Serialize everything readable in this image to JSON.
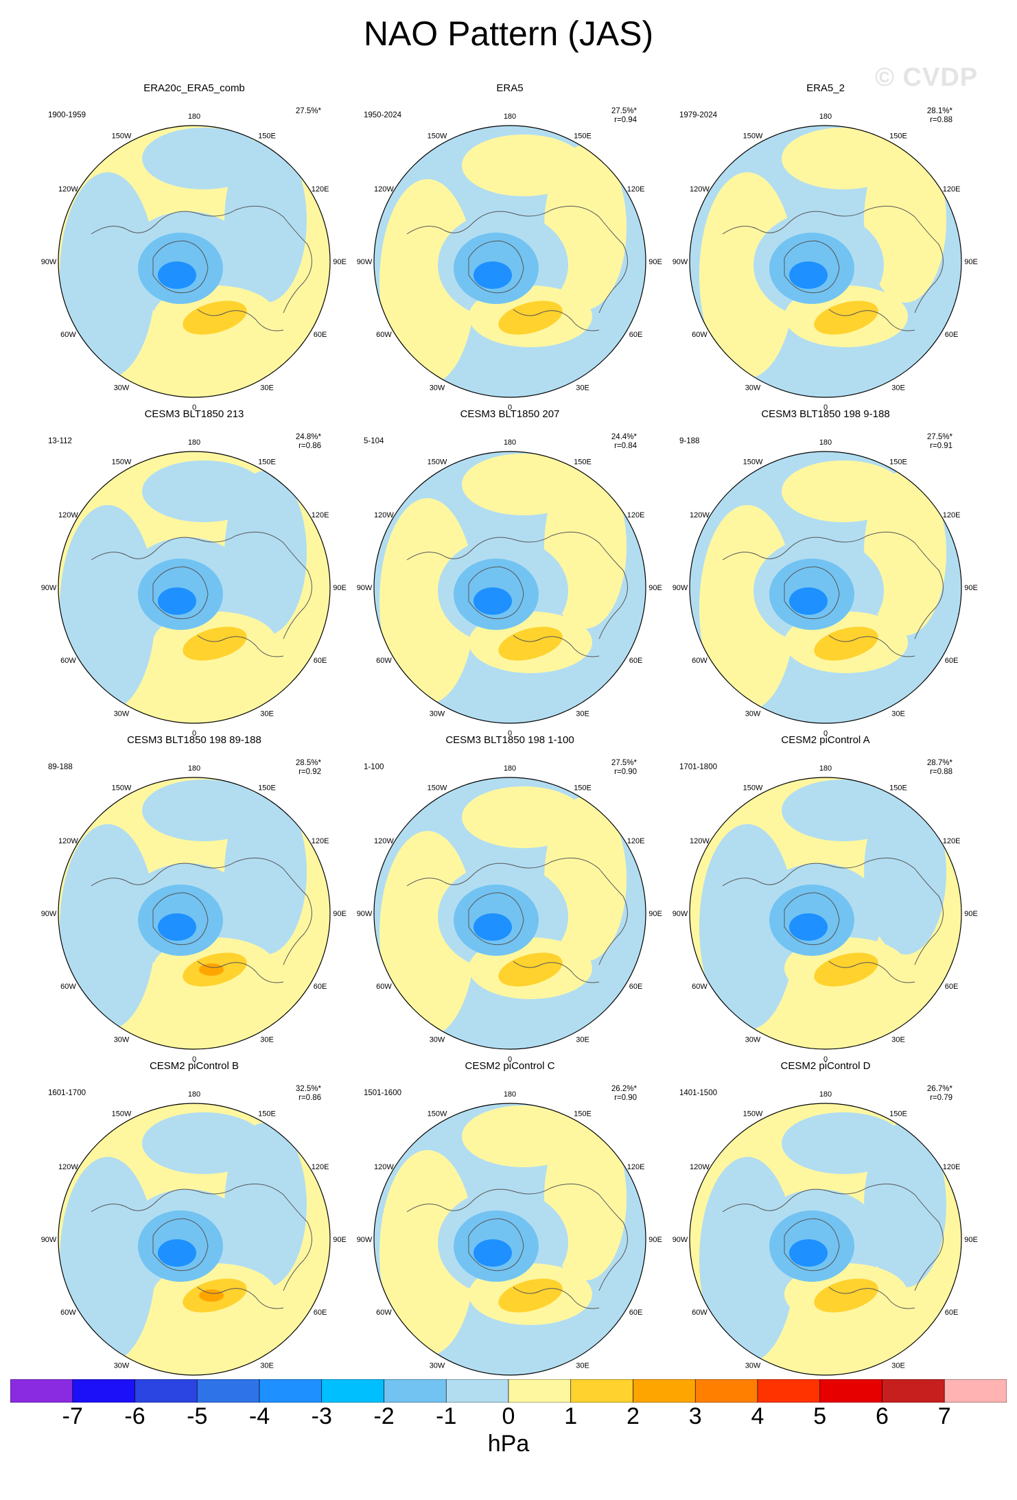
{
  "title": "NAO Pattern (JAS)",
  "watermark": "© CVDP",
  "colors": {
    "neg3": "#1e90ff",
    "neg2": "#72c3f2",
    "neg1": "#b2ddf1",
    "zero": "#fff7a0",
    "pos1": "#ffd22e",
    "pos2": "#ffa500"
  },
  "lon_labels": [
    "180",
    "150E",
    "120E",
    "90E",
    "60E",
    "30E",
    "0",
    "30W",
    "60W",
    "90W",
    "120W",
    "150W"
  ],
  "panels": [
    {
      "title": "ERA20c_ERA5_comb",
      "period": "1900-1959",
      "pct": "27.5%*",
      "r": ""
    },
    {
      "title": "ERA5",
      "period": "1950-2024",
      "pct": "27.5%*",
      "r": "r=0.94"
    },
    {
      "title": "ERA5_2",
      "period": "1979-2024",
      "pct": "28.1%*",
      "r": "r=0.88"
    },
    {
      "title": "CESM3 BLT1850 213",
      "period": "13-112",
      "pct": "24.8%*",
      "r": "r=0.86"
    },
    {
      "title": "CESM3 BLT1850 207",
      "period": "5-104",
      "pct": "24.4%*",
      "r": "r=0.84"
    },
    {
      "title": "CESM3 BLT1850 198 9-188",
      "period": "9-188",
      "pct": "27.5%*",
      "r": "r=0.91"
    },
    {
      "title": "CESM3 BLT1850 198 89-188",
      "period": "89-188",
      "pct": "28.5%*",
      "r": "r=0.92"
    },
    {
      "title": "CESM3 BLT1850 198 1-100",
      "period": "1-100",
      "pct": "27.5%*",
      "r": "r=0.90"
    },
    {
      "title": "CESM2 piControl A",
      "period": "1701-1800",
      "pct": "28.7%*",
      "r": "r=0.88"
    },
    {
      "title": "CESM2 piControl B",
      "period": "1601-1700",
      "pct": "32.5%*",
      "r": "r=0.86"
    },
    {
      "title": "CESM2 piControl C",
      "period": "1501-1600",
      "pct": "26.2%*",
      "r": "r=0.90"
    },
    {
      "title": "CESM2 piControl D",
      "period": "1401-1500",
      "pct": "26.7%*",
      "r": "r=0.79"
    }
  ],
  "colorbar": {
    "colors": [
      "#8a2be2",
      "#1c10f8",
      "#2b45e2",
      "#2f73e8",
      "#1e90ff",
      "#00bfff",
      "#72c3f2",
      "#b2ddf1",
      "#fff7a0",
      "#ffd22e",
      "#ffa500",
      "#ff7f00",
      "#ff3300",
      "#e60000",
      "#c71e1e",
      "#ffb3b3"
    ],
    "labels": [
      "-7",
      "-6",
      "-5",
      "-4",
      "-3",
      "-2",
      "-1",
      "0",
      "1",
      "2",
      "3",
      "4",
      "5",
      "6",
      "7"
    ],
    "units": "hPa"
  }
}
